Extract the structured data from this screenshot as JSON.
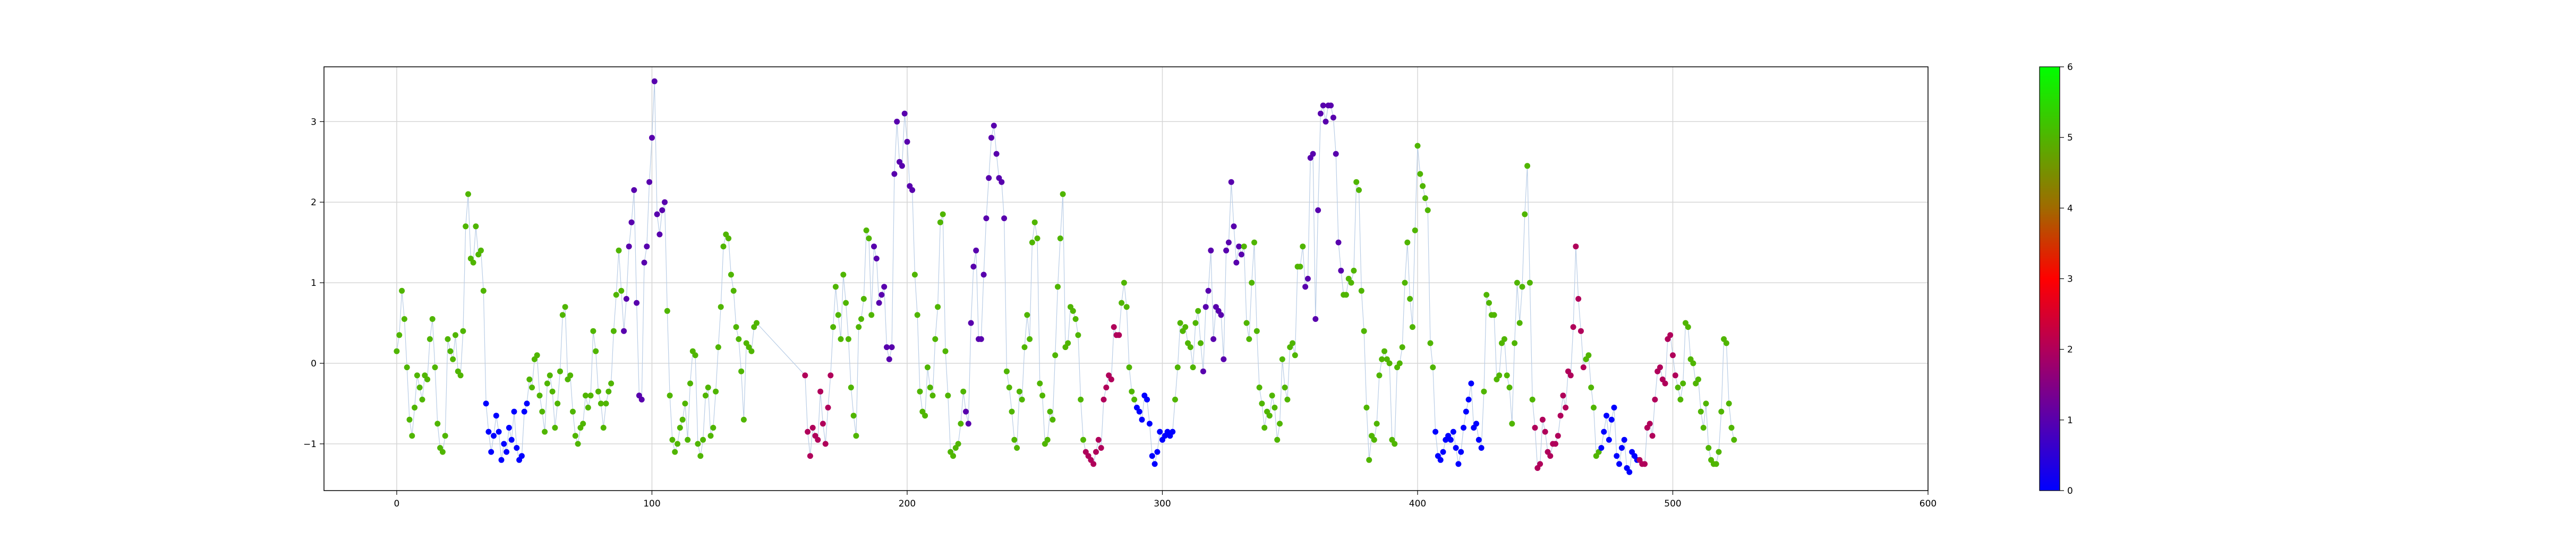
{
  "chart_data": {
    "type": "scatter",
    "title": "",
    "xlabel": "",
    "ylabel": "",
    "xlim": [
      -28.5,
      600
    ],
    "ylim": [
      -1.58,
      3.68
    ],
    "xticks": [
      0,
      100,
      200,
      300,
      400,
      500,
      600
    ],
    "yticks": [
      -1,
      0,
      1,
      2,
      3
    ],
    "xtick_labels": [
      "0",
      "100",
      "200",
      "300",
      "400",
      "500",
      "600"
    ],
    "ytick_labels": [
      "−1",
      "0",
      "1",
      "2",
      "3"
    ],
    "grid": true,
    "connecting_line": {
      "color": "#b9cde6"
    },
    "colorbar": {
      "range": [
        0,
        6
      ],
      "ticks": [
        0,
        1,
        2,
        3,
        4,
        5,
        6
      ],
      "tick_labels": [
        "0",
        "1",
        "2",
        "3",
        "4",
        "5",
        "6"
      ],
      "stops": [
        {
          "value": 0,
          "color": "#0000ff"
        },
        {
          "value": 2,
          "color": "#b0005a"
        },
        {
          "value": 3,
          "color": "#ff0000"
        },
        {
          "value": 4,
          "color": "#a06a00"
        },
        {
          "value": 6,
          "color": "#00ff00"
        }
      ]
    },
    "segments": [
      {
        "state": 5,
        "x_start": 0,
        "y": [
          0.15,
          0.35,
          0.9,
          0.55,
          -0.05,
          -0.7,
          -0.9,
          -0.55,
          -0.15,
          -0.3,
          -0.45,
          -0.15,
          -0.2,
          0.3,
          0.55,
          -0.05,
          -0.75,
          -1.05,
          -1.1,
          -0.9,
          0.3,
          0.15,
          0.05,
          0.35,
          -0.1,
          -0.15,
          0.4,
          1.7,
          2.1,
          1.3,
          1.25,
          1.7,
          1.35,
          1.4,
          0.9
        ]
      },
      {
        "state": 0,
        "x_start": 35,
        "y": [
          -0.5,
          -0.85,
          -1.1,
          -0.9,
          -0.65,
          -0.85,
          -1.2,
          -1.0,
          -1.1,
          -0.8,
          -0.95,
          -0.6,
          -1.05,
          -1.2,
          -1.15,
          -0.6,
          -0.5
        ]
      },
      {
        "state": 5,
        "x_start": 52,
        "y": [
          -0.2,
          -0.3,
          0.05,
          0.1,
          -0.4,
          -0.6,
          -0.85,
          -0.25,
          -0.15,
          -0.35,
          -0.8,
          -0.5,
          -0.1,
          0.6,
          0.7,
          -0.2,
          -0.15,
          -0.6,
          -0.9,
          -1.0,
          -0.8,
          -0.75,
          -0.4,
          -0.55,
          -0.4,
          0.4,
          0.15,
          -0.35,
          -0.5,
          -0.8,
          -0.5,
          -0.35,
          -0.25,
          0.4,
          0.85,
          1.4,
          0.9
        ]
      },
      {
        "state": 1,
        "x_start": 89,
        "y": [
          0.4,
          0.8,
          1.45,
          1.75,
          2.15,
          0.75,
          -0.4,
          -0.45,
          1.25,
          1.45,
          2.25,
          2.8,
          3.5,
          1.85,
          1.6,
          1.9,
          2.0
        ]
      },
      {
        "state": 5,
        "x_start": 106,
        "y": [
          0.65,
          -0.4,
          -0.95,
          -1.1,
          -1.0,
          -0.8,
          -0.7,
          -0.5,
          -0.95,
          -0.25,
          0.15,
          0.1,
          -1.0,
          -1.15,
          -0.95,
          -0.4,
          -0.3,
          -0.9,
          -0.8,
          -0.35,
          0.2,
          0.7,
          1.45,
          1.6,
          1.55,
          1.1,
          0.9,
          0.45,
          0.3,
          -0.1,
          -0.7,
          0.25,
          0.2,
          0.15,
          0.45,
          0.5
        ]
      },
      {
        "state": 2,
        "x_start": 160,
        "y": [
          -0.15,
          -0.85,
          -1.15,
          -0.8,
          -0.9,
          -0.95,
          -0.35,
          -0.75,
          -1.0,
          -0.55,
          -0.15
        ]
      },
      {
        "state": 5,
        "x_start": 171,
        "y": [
          0.45,
          0.95,
          0.6,
          0.3,
          1.1,
          0.75,
          0.3,
          -0.3,
          -0.65,
          -0.9,
          0.45,
          0.55,
          0.8,
          1.65,
          1.55,
          0.6
        ]
      },
      {
        "state": 1,
        "x_start": 187,
        "y": [
          1.45,
          1.3,
          0.75,
          0.85,
          0.95,
          0.2,
          0.05,
          0.2,
          2.35,
          3.0,
          2.5,
          2.45,
          3.1,
          2.75,
          2.2,
          2.15
        ]
      },
      {
        "state": 5,
        "x_start": 203,
        "y": [
          1.1,
          0.6,
          -0.35,
          -0.6,
          -0.65,
          -0.05,
          -0.3,
          -0.4,
          0.3,
          0.7,
          1.75,
          1.85,
          0.15,
          -0.4,
          -1.1,
          -1.15,
          -1.05,
          -1.0,
          -0.75,
          -0.35
        ]
      },
      {
        "state": 1,
        "x_start": 223,
        "y": [
          -0.6,
          -0.75,
          0.5,
          1.2,
          1.4,
          0.3,
          0.3,
          1.1,
          1.8,
          2.3,
          2.8,
          2.95,
          2.6,
          2.3,
          2.25,
          1.8
        ]
      },
      {
        "state": 5,
        "x_start": 239,
        "y": [
          -0.1,
          -0.3,
          -0.6,
          -0.95,
          -1.05,
          -0.35,
          -0.45,
          0.2,
          0.6,
          0.3,
          1.5,
          1.75,
          1.55,
          -0.25,
          -0.4,
          -1.0,
          -0.95,
          -0.6,
          -0.7,
          0.1,
          0.95,
          1.55,
          2.1,
          0.2,
          0.25,
          0.7,
          0.65,
          0.55,
          0.35,
          -0.45,
          -0.95
        ]
      },
      {
        "state": 2,
        "x_start": 270,
        "y": [
          -1.1,
          -1.15,
          -1.2,
          -1.25,
          -1.1,
          -0.95,
          -1.05,
          -0.45,
          -0.3,
          -0.15,
          -0.2,
          0.45,
          0.35,
          0.35
        ]
      },
      {
        "state": 5,
        "x_start": 284,
        "y": [
          0.75,
          1.0,
          0.7,
          -0.05,
          -0.35,
          -0.45
        ]
      },
      {
        "state": 0,
        "x_start": 290,
        "y": [
          -0.55,
          -0.6,
          -0.7,
          -0.4,
          -0.45,
          -0.75,
          -1.15,
          -1.25,
          -1.1,
          -0.85,
          -0.95,
          -0.9,
          -0.85,
          -0.9,
          -0.85
        ]
      },
      {
        "state": 5,
        "x_start": 305,
        "y": [
          -0.45,
          -0.05,
          0.5,
          0.4,
          0.45,
          0.25,
          0.2,
          -0.05,
          0.5,
          0.65,
          0.25
        ]
      },
      {
        "state": 1,
        "x_start": 316,
        "y": [
          -0.1,
          0.7,
          0.9,
          1.4,
          0.3,
          0.7,
          0.65,
          0.6,
          0.05,
          1.4,
          1.5,
          2.25,
          1.7,
          1.25,
          1.45,
          1.35
        ]
      },
      {
        "state": 5,
        "x_start": 332,
        "y": [
          1.45,
          0.5,
          0.3,
          1.0,
          1.5,
          0.4,
          -0.3,
          -0.5,
          -0.8,
          -0.6,
          -0.65,
          -0.4,
          -0.55,
          -0.95,
          -0.75,
          0.05,
          -0.3,
          -0.45,
          0.2,
          0.25,
          0.1,
          1.2,
          1.2,
          1.45
        ]
      },
      {
        "state": 1,
        "x_start": 356,
        "y": [
          0.95,
          1.05,
          2.55,
          2.6,
          0.55,
          1.9,
          3.1,
          3.2,
          3.0,
          3.2,
          3.2,
          3.05,
          2.6,
          1.5,
          1.15
        ]
      },
      {
        "state": 5,
        "x_start": 371,
        "y": [
          0.85,
          0.85,
          1.05,
          1.0,
          1.15,
          2.25,
          2.15,
          0.9,
          0.4,
          -0.55,
          -1.2,
          -0.9,
          -0.95,
          -0.75,
          -0.15,
          0.05,
          0.15,
          0.05,
          0.0
        ]
      },
      {
        "state": 5,
        "x_start": 390,
        "y": [
          -0.95,
          -1.0,
          -0.05,
          0.0,
          0.2,
          1.0,
          1.5,
          0.8,
          0.45,
          1.65,
          2.7,
          2.35,
          2.2,
          2.05,
          1.9,
          0.25,
          -0.05
        ]
      },
      {
        "state": 0,
        "x_start": 407,
        "y": [
          -0.85,
          -1.15,
          -1.2,
          -1.1,
          -0.95,
          -0.9,
          -0.95,
          -0.85,
          -1.05,
          -1.25,
          -1.1,
          -0.8,
          -0.6,
          -0.45,
          -0.25,
          -0.8,
          -0.75,
          -0.95,
          -1.05
        ]
      },
      {
        "state": 5,
        "x_start": 426,
        "y": [
          -0.35,
          0.85,
          0.75,
          0.6,
          0.6,
          -0.2,
          -0.15,
          0.25,
          0.3,
          -0.15,
          -0.3,
          -0.75,
          0.25,
          1.0,
          0.5,
          0.95,
          1.85,
          2.45,
          1.0,
          -0.45
        ]
      },
      {
        "state": 2,
        "x_start": 446,
        "y": [
          -0.8,
          -1.3,
          -1.25,
          -0.7,
          -0.85,
          -1.1,
          -1.15,
          -1.0,
          -1.0,
          -0.9,
          -0.65,
          -0.4,
          -0.55,
          -0.1,
          -0.15,
          0.45,
          1.45,
          0.8,
          0.4,
          -0.05
        ]
      },
      {
        "state": 5,
        "x_start": 466,
        "y": [
          0.05,
          0.1,
          -0.3,
          -0.55,
          -1.15,
          -1.1
        ]
      },
      {
        "state": 0,
        "x_start": 472,
        "y": [
          -1.05,
          -0.85,
          -0.65,
          -0.95,
          -0.7,
          -0.55,
          -1.15,
          -1.25,
          -1.05,
          -0.95,
          -1.3,
          -1.35,
          -1.1,
          -1.15,
          -1.2
        ]
      },
      {
        "state": 2,
        "x_start": 487,
        "y": [
          -1.2,
          -1.25,
          -1.25,
          -0.8,
          -0.75,
          -0.9,
          -0.45,
          -0.1,
          -0.05,
          -0.2,
          -0.25,
          0.3,
          0.35,
          0.1,
          -0.15
        ]
      },
      {
        "state": 5,
        "x_start": 502,
        "y": [
          -0.3,
          -0.45,
          -0.25,
          0.5,
          0.45,
          0.05,
          0.0,
          -0.25,
          -0.2,
          -0.6,
          -0.8,
          -0.5,
          -1.05,
          -1.2,
          -1.25,
          -1.25,
          -1.1,
          -0.6,
          0.3,
          0.25,
          -0.5,
          -0.8,
          -0.95
        ]
      }
    ]
  }
}
